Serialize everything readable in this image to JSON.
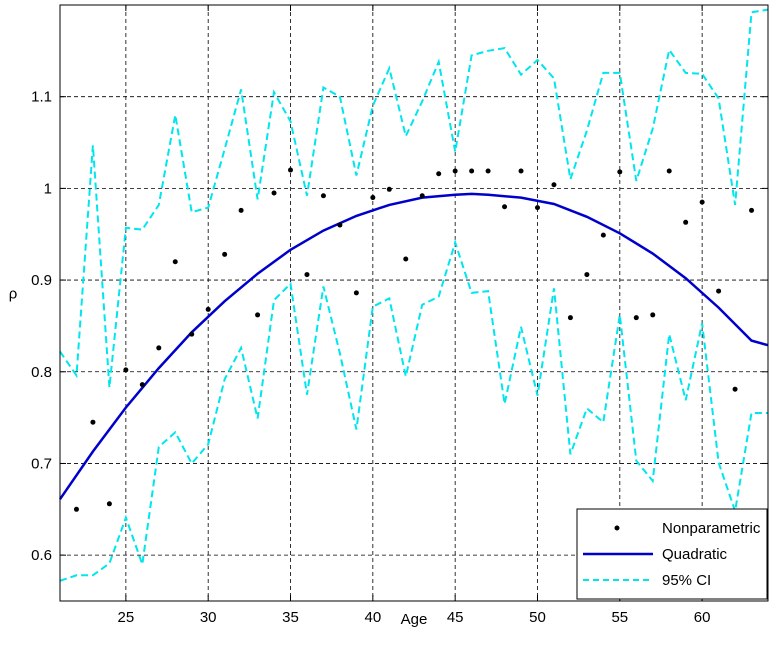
{
  "chart_data": {
    "type": "line",
    "xlabel": "Age",
    "ylabel": "ρ",
    "xlim": [
      21,
      64
    ],
    "ylim": [
      0.55,
      1.2
    ],
    "xticks": [
      25,
      30,
      35,
      40,
      45,
      50,
      55,
      60
    ],
    "yticks": [
      0.6,
      0.7,
      0.8,
      0.9,
      1,
      1.1
    ],
    "ytick_labels": [
      "0.6",
      "0.7",
      "0.8",
      "0.9",
      "1",
      "1.1"
    ],
    "grid": true,
    "legend_position": "bottom-right",
    "series": [
      {
        "name": "Nonparametric",
        "style": "points",
        "color": "#000000",
        "x": [
          22,
          23,
          24,
          25,
          26,
          27,
          28,
          29,
          30,
          31,
          32,
          33,
          34,
          35,
          36,
          37,
          38,
          39,
          40,
          41,
          42,
          43,
          44,
          45,
          46,
          47,
          48,
          49,
          50,
          51,
          52,
          53,
          54,
          55,
          56,
          57,
          58,
          59,
          60,
          61,
          62,
          63
        ],
        "y": [
          0.65,
          0.745,
          0.656,
          0.802,
          0.786,
          0.826,
          0.92,
          0.841,
          0.868,
          0.928,
          0.976,
          0.862,
          0.995,
          1.02,
          0.906,
          0.992,
          0.96,
          0.886,
          0.99,
          0.999,
          0.923,
          0.992,
          1.016,
          1.019,
          1.019,
          1.019,
          0.98,
          1.019,
          0.979,
          1.004,
          0.859,
          0.906,
          0.949,
          1.018,
          0.859,
          0.862,
          1.019,
          0.963,
          0.985,
          0.888,
          0.781,
          0.976
        ]
      },
      {
        "name": "Quadratic",
        "style": "solid",
        "color": "#0000cc",
        "x": [
          21,
          23,
          25,
          27,
          29,
          31,
          33,
          35,
          37,
          39,
          41,
          43,
          45,
          46,
          47,
          49,
          51,
          53,
          55,
          57,
          59,
          61,
          63,
          64
        ],
        "y": [
          0.661,
          0.713,
          0.761,
          0.804,
          0.843,
          0.877,
          0.907,
          0.933,
          0.954,
          0.97,
          0.982,
          0.99,
          0.993,
          0.994,
          0.993,
          0.99,
          0.983,
          0.969,
          0.951,
          0.929,
          0.902,
          0.87,
          0.834,
          0.829
        ]
      },
      {
        "name": "95% CI",
        "style": "dashed",
        "color": "#00e5ee",
        "x": [
          21,
          22,
          23,
          24,
          25,
          26,
          27,
          28,
          29,
          30,
          31,
          32,
          33,
          34,
          35,
          36,
          37,
          38,
          39,
          40,
          41,
          42,
          43,
          44,
          45,
          46,
          47,
          48,
          49,
          50,
          51,
          52,
          53,
          54,
          55,
          56,
          57,
          58,
          59,
          60,
          61,
          62,
          63,
          64
        ],
        "y": [
          0.822,
          0.796,
          1.047,
          0.783,
          0.957,
          0.955,
          0.982,
          1.08,
          0.974,
          0.979,
          1.043,
          1.108,
          0.988,
          1.105,
          1.073,
          0.992,
          1.11,
          1.1,
          1.014,
          1.09,
          1.131,
          1.057,
          1.095,
          1.138,
          1.04,
          1.145,
          1.15,
          1.153,
          1.124,
          1.14,
          1.12,
          1.01,
          1.063,
          1.126,
          1.126,
          1.008,
          1.065,
          1.151,
          1.126,
          1.125,
          1.098,
          0.982,
          1.192,
          1.195
        ]
      },
      {
        "name": "95% CI lower",
        "style": "dashed",
        "color": "#00e5ee",
        "x": [
          21,
          22,
          23,
          24,
          25,
          26,
          27,
          28,
          29,
          30,
          31,
          32,
          33,
          34,
          35,
          36,
          37,
          38,
          39,
          40,
          41,
          42,
          43,
          44,
          45,
          46,
          47,
          48,
          49,
          50,
          51,
          52,
          53,
          54,
          55,
          56,
          57,
          58,
          59,
          60,
          61,
          62,
          63,
          64
        ],
        "y": [
          0.572,
          0.578,
          0.578,
          0.591,
          0.641,
          0.59,
          0.718,
          0.734,
          0.7,
          0.721,
          0.792,
          0.826,
          0.749,
          0.878,
          0.896,
          0.775,
          0.893,
          0.82,
          0.737,
          0.871,
          0.88,
          0.795,
          0.873,
          0.882,
          0.941,
          0.886,
          0.888,
          0.765,
          0.849,
          0.774,
          0.891,
          0.71,
          0.76,
          0.745,
          0.862,
          0.703,
          0.681,
          0.841,
          0.769,
          0.853,
          0.701,
          0.648,
          0.755,
          0.755
        ]
      }
    ],
    "legend": {
      "entries": [
        "Nonparametric",
        "Quadratic",
        "95% CI"
      ]
    }
  }
}
